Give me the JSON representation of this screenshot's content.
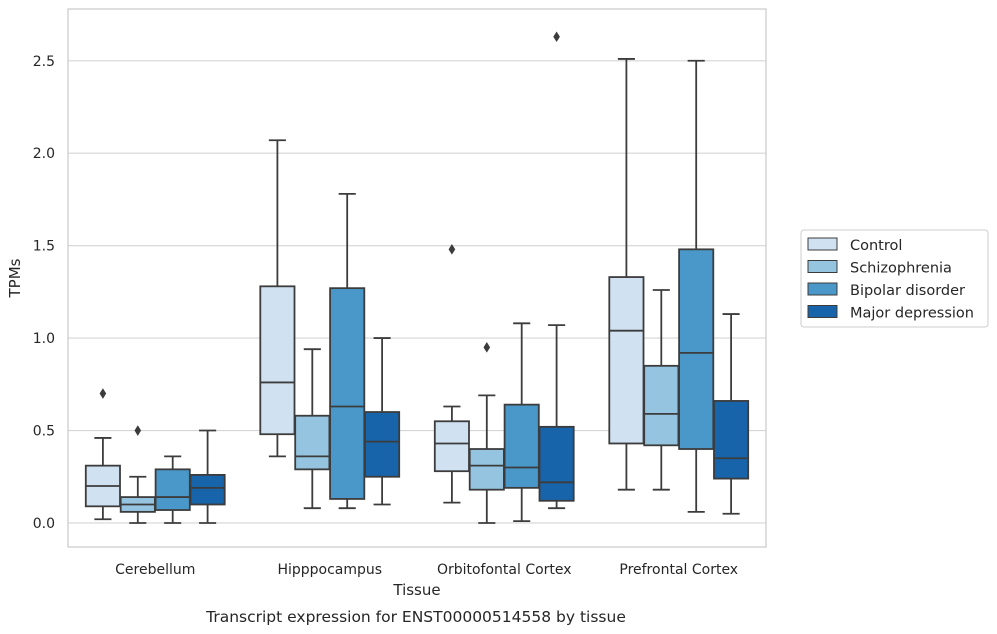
{
  "caption": "Transcript expression for ENST00000514558 by tissue",
  "chart_data": {
    "type": "boxplot",
    "xlabel": "Tissue",
    "ylabel": "TPMs",
    "ylim": [
      -0.13,
      2.78
    ],
    "yticks": [
      "0.0",
      "0.5",
      "1.0",
      "1.5",
      "2.0",
      "2.5"
    ],
    "grid": "horizontal",
    "legend_position": "right",
    "categories": [
      "Cerebellum",
      "Hipppocampus",
      "Orbitofontal Cortex",
      "Prefrontal Cortex"
    ],
    "series": [
      {
        "name": "Control",
        "color": "#d0e1f2",
        "boxes": [
          {
            "q1": 0.09,
            "median": 0.2,
            "q3": 0.31,
            "whisker_low": 0.02,
            "whisker_high": 0.46,
            "outliers": [
              0.7
            ]
          },
          {
            "q1": 0.48,
            "median": 0.76,
            "q3": 1.28,
            "whisker_low": 0.36,
            "whisker_high": 2.07,
            "outliers": []
          },
          {
            "q1": 0.28,
            "median": 0.43,
            "q3": 0.55,
            "whisker_low": 0.11,
            "whisker_high": 0.63,
            "outliers": [
              1.48
            ]
          },
          {
            "q1": 0.43,
            "median": 1.04,
            "q3": 1.33,
            "whisker_low": 0.18,
            "whisker_high": 2.51,
            "outliers": []
          }
        ]
      },
      {
        "name": "Schizophrenia",
        "color": "#94c4df",
        "boxes": [
          {
            "q1": 0.06,
            "median": 0.1,
            "q3": 0.14,
            "whisker_low": 0.0,
            "whisker_high": 0.25,
            "outliers": [
              0.5
            ]
          },
          {
            "q1": 0.29,
            "median": 0.36,
            "q3": 0.58,
            "whisker_low": 0.08,
            "whisker_high": 0.94,
            "outliers": []
          },
          {
            "q1": 0.18,
            "median": 0.31,
            "q3": 0.4,
            "whisker_low": 0.0,
            "whisker_high": 0.69,
            "outliers": [
              0.95
            ]
          },
          {
            "q1": 0.42,
            "median": 0.59,
            "q3": 0.85,
            "whisker_low": 0.18,
            "whisker_high": 1.26,
            "outliers": []
          }
        ]
      },
      {
        "name": "Bipolar disorder",
        "color": "#4a98c9",
        "boxes": [
          {
            "q1": 0.07,
            "median": 0.14,
            "q3": 0.29,
            "whisker_low": 0.0,
            "whisker_high": 0.36,
            "outliers": []
          },
          {
            "q1": 0.13,
            "median": 0.63,
            "q3": 1.27,
            "whisker_low": 0.08,
            "whisker_high": 1.78,
            "outliers": []
          },
          {
            "q1": 0.19,
            "median": 0.3,
            "q3": 0.64,
            "whisker_low": 0.01,
            "whisker_high": 1.08,
            "outliers": []
          },
          {
            "q1": 0.4,
            "median": 0.92,
            "q3": 1.48,
            "whisker_low": 0.06,
            "whisker_high": 2.5,
            "outliers": []
          }
        ]
      },
      {
        "name": "Major depression",
        "color": "#1764ab",
        "boxes": [
          {
            "q1": 0.1,
            "median": 0.19,
            "q3": 0.26,
            "whisker_low": 0.0,
            "whisker_high": 0.5,
            "outliers": []
          },
          {
            "q1": 0.25,
            "median": 0.44,
            "q3": 0.6,
            "whisker_low": 0.1,
            "whisker_high": 1.0,
            "outliers": []
          },
          {
            "q1": 0.12,
            "median": 0.22,
            "q3": 0.52,
            "whisker_low": 0.08,
            "whisker_high": 1.07,
            "outliers": [
              2.63
            ]
          },
          {
            "q1": 0.24,
            "median": 0.35,
            "q3": 0.66,
            "whisker_low": 0.05,
            "whisker_high": 1.13,
            "outliers": []
          }
        ]
      }
    ]
  }
}
